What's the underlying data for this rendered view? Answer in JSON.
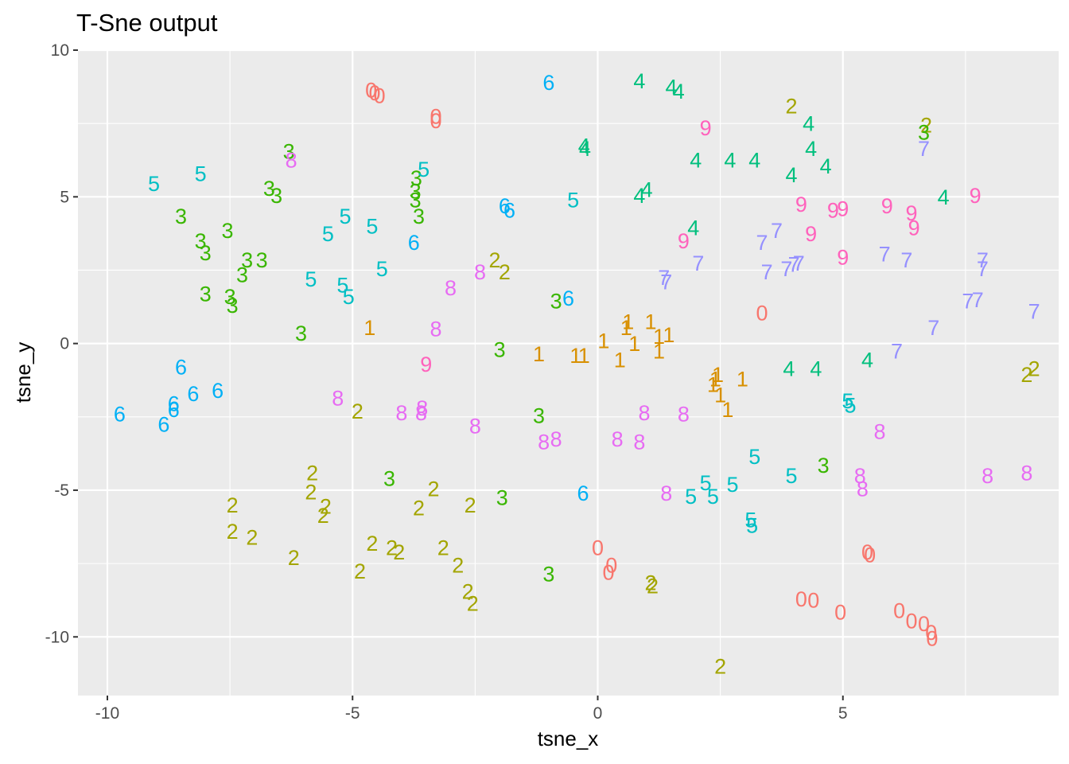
{
  "chart_data": {
    "type": "scatter",
    "title": "T-Sne output",
    "xlabel": "tsne_x",
    "ylabel": "tsne_y",
    "xlim": [
      -10.6,
      9.4
    ],
    "ylim": [
      -12.0,
      10.0
    ],
    "x_ticks": [
      -10,
      -5,
      0,
      5
    ],
    "y_ticks": [
      10,
      5,
      0,
      -5,
      -10
    ],
    "x_tick_labels": [
      "-10",
      "-5",
      "0",
      "5"
    ],
    "y_tick_labels": [
      "10",
      "5",
      "0",
      "-5",
      "-10"
    ],
    "grid": true,
    "legend": "none",
    "panel_background": "#ebebeb",
    "grid_color": "#ffffff",
    "label_colors": {
      "0": "#f8766d",
      "1": "#d89000",
      "2": "#a3a500",
      "3": "#39b600",
      "4": "#00bf7d",
      "5": "#00bfc4",
      "6": "#00b0f6",
      "7": "#9590ff",
      "8": "#e76bf3",
      "9": "#ff62bc"
    },
    "points": [
      {
        "x": -4.62,
        "y": 8.65,
        "label": "0"
      },
      {
        "x": -4.55,
        "y": 8.55,
        "label": "0"
      },
      {
        "x": -4.45,
        "y": 8.45,
        "label": "0"
      },
      {
        "x": -3.3,
        "y": 7.75,
        "label": "0"
      },
      {
        "x": -3.3,
        "y": 7.6,
        "label": "0"
      },
      {
        "x": 3.35,
        "y": 1.05,
        "label": "0"
      },
      {
        "x": 0.0,
        "y": -6.95,
        "label": "0"
      },
      {
        "x": 0.28,
        "y": -7.55,
        "label": "0"
      },
      {
        "x": 0.22,
        "y": -7.8,
        "label": "0"
      },
      {
        "x": 4.15,
        "y": -8.7,
        "label": "0"
      },
      {
        "x": 4.4,
        "y": -8.75,
        "label": "0"
      },
      {
        "x": 4.95,
        "y": -9.15,
        "label": "0"
      },
      {
        "x": 5.5,
        "y": -7.1,
        "label": "0"
      },
      {
        "x": 5.55,
        "y": -7.2,
        "label": "0"
      },
      {
        "x": 6.15,
        "y": -9.1,
        "label": "0"
      },
      {
        "x": 6.4,
        "y": -9.45,
        "label": "0"
      },
      {
        "x": 6.65,
        "y": -9.55,
        "label": "0"
      },
      {
        "x": 6.8,
        "y": -9.85,
        "label": "0"
      },
      {
        "x": 6.82,
        "y": -10.05,
        "label": "0"
      },
      {
        "x": -4.65,
        "y": 0.55,
        "label": "1"
      },
      {
        "x": -1.2,
        "y": -0.35,
        "label": "1"
      },
      {
        "x": -0.45,
        "y": -0.4,
        "label": "1"
      },
      {
        "x": -0.28,
        "y": -0.4,
        "label": "1"
      },
      {
        "x": 0.12,
        "y": 0.1,
        "label": "1"
      },
      {
        "x": 0.45,
        "y": -0.55,
        "label": "1"
      },
      {
        "x": 0.58,
        "y": 0.55,
        "label": "1"
      },
      {
        "x": 0.62,
        "y": 0.75,
        "label": "1"
      },
      {
        "x": 0.75,
        "y": 0.0,
        "label": "1"
      },
      {
        "x": 1.08,
        "y": 0.75,
        "label": "1"
      },
      {
        "x": 1.25,
        "y": 0.25,
        "label": "1"
      },
      {
        "x": 1.45,
        "y": 0.3,
        "label": "1"
      },
      {
        "x": 1.25,
        "y": -0.25,
        "label": "1"
      },
      {
        "x": 2.4,
        "y": -1.2,
        "label": "1"
      },
      {
        "x": 2.45,
        "y": -1.05,
        "label": "1"
      },
      {
        "x": 2.35,
        "y": -1.4,
        "label": "1"
      },
      {
        "x": 2.5,
        "y": -1.75,
        "label": "1"
      },
      {
        "x": 2.65,
        "y": -2.25,
        "label": "1"
      },
      {
        "x": 2.95,
        "y": -1.2,
        "label": "1"
      },
      {
        "x": 3.95,
        "y": 8.1,
        "label": "2"
      },
      {
        "x": 6.7,
        "y": 7.45,
        "label": "2"
      },
      {
        "x": -2.1,
        "y": 2.85,
        "label": "2"
      },
      {
        "x": -1.9,
        "y": 2.45,
        "label": "2"
      },
      {
        "x": 8.75,
        "y": -1.05,
        "label": "2"
      },
      {
        "x": 8.9,
        "y": -0.85,
        "label": "2"
      },
      {
        "x": -4.9,
        "y": -2.3,
        "label": "2"
      },
      {
        "x": -5.82,
        "y": -4.4,
        "label": "2"
      },
      {
        "x": -5.85,
        "y": -5.05,
        "label": "2"
      },
      {
        "x": -5.55,
        "y": -5.55,
        "label": "2"
      },
      {
        "x": -5.6,
        "y": -5.85,
        "label": "2"
      },
      {
        "x": -7.45,
        "y": -5.5,
        "label": "2"
      },
      {
        "x": -7.45,
        "y": -6.4,
        "label": "2"
      },
      {
        "x": -7.05,
        "y": -6.6,
        "label": "2"
      },
      {
        "x": -6.2,
        "y": -7.3,
        "label": "2"
      },
      {
        "x": -4.85,
        "y": -7.75,
        "label": "2"
      },
      {
        "x": -4.6,
        "y": -6.8,
        "label": "2"
      },
      {
        "x": -4.2,
        "y": -6.95,
        "label": "2"
      },
      {
        "x": -4.05,
        "y": -7.1,
        "label": "2"
      },
      {
        "x": -3.65,
        "y": -5.6,
        "label": "2"
      },
      {
        "x": -3.35,
        "y": -4.95,
        "label": "2"
      },
      {
        "x": -3.15,
        "y": -6.95,
        "label": "2"
      },
      {
        "x": -2.85,
        "y": -7.55,
        "label": "2"
      },
      {
        "x": -2.6,
        "y": -5.5,
        "label": "2"
      },
      {
        "x": -2.65,
        "y": -8.45,
        "label": "2"
      },
      {
        "x": -2.55,
        "y": -8.85,
        "label": "2"
      },
      {
        "x": 1.08,
        "y": -8.15,
        "label": "2"
      },
      {
        "x": 1.12,
        "y": -8.25,
        "label": "2"
      },
      {
        "x": 2.5,
        "y": -11.0,
        "label": "2"
      },
      {
        "x": -6.3,
        "y": 6.55,
        "label": "3"
      },
      {
        "x": -6.7,
        "y": 5.3,
        "label": "3"
      },
      {
        "x": -6.55,
        "y": 5.05,
        "label": "3"
      },
      {
        "x": -3.7,
        "y": 5.65,
        "label": "3"
      },
      {
        "x": -3.72,
        "y": 5.2,
        "label": "3"
      },
      {
        "x": -3.72,
        "y": 4.9,
        "label": "3"
      },
      {
        "x": -3.65,
        "y": 4.35,
        "label": "3"
      },
      {
        "x": 6.65,
        "y": 7.2,
        "label": "3"
      },
      {
        "x": -8.5,
        "y": 4.35,
        "label": "3"
      },
      {
        "x": -7.55,
        "y": 3.85,
        "label": "3"
      },
      {
        "x": -8.1,
        "y": 3.5,
        "label": "3"
      },
      {
        "x": -8.0,
        "y": 3.1,
        "label": "3"
      },
      {
        "x": -7.15,
        "y": 2.85,
        "label": "3"
      },
      {
        "x": -6.85,
        "y": 2.85,
        "label": "3"
      },
      {
        "x": -7.25,
        "y": 2.35,
        "label": "3"
      },
      {
        "x": -8.0,
        "y": 1.7,
        "label": "3"
      },
      {
        "x": -7.5,
        "y": 1.6,
        "label": "3"
      },
      {
        "x": -7.45,
        "y": 1.3,
        "label": "3"
      },
      {
        "x": -6.05,
        "y": 0.35,
        "label": "3"
      },
      {
        "x": -0.85,
        "y": 1.45,
        "label": "3"
      },
      {
        "x": -2.0,
        "y": -0.2,
        "label": "3"
      },
      {
        "x": -1.2,
        "y": -2.45,
        "label": "3"
      },
      {
        "x": 4.6,
        "y": -4.15,
        "label": "3"
      },
      {
        "x": -4.25,
        "y": -4.6,
        "label": "3"
      },
      {
        "x": -1.95,
        "y": -5.25,
        "label": "3"
      },
      {
        "x": -1.0,
        "y": -7.85,
        "label": "3"
      },
      {
        "x": 0.85,
        "y": 8.95,
        "label": "4"
      },
      {
        "x": 1.5,
        "y": 8.75,
        "label": "4"
      },
      {
        "x": 1.65,
        "y": 8.6,
        "label": "4"
      },
      {
        "x": -0.28,
        "y": 6.75,
        "label": "4"
      },
      {
        "x": -0.26,
        "y": 6.65,
        "label": "4"
      },
      {
        "x": 4.3,
        "y": 7.5,
        "label": "4"
      },
      {
        "x": 4.35,
        "y": 6.65,
        "label": "4"
      },
      {
        "x": 2.0,
        "y": 6.25,
        "label": "4"
      },
      {
        "x": 2.7,
        "y": 6.25,
        "label": "4"
      },
      {
        "x": 3.2,
        "y": 6.25,
        "label": "4"
      },
      {
        "x": 3.95,
        "y": 5.75,
        "label": "4"
      },
      {
        "x": 4.65,
        "y": 6.05,
        "label": "4"
      },
      {
        "x": 7.05,
        "y": 5.0,
        "label": "4"
      },
      {
        "x": 1.0,
        "y": 5.25,
        "label": "4"
      },
      {
        "x": 0.85,
        "y": 5.05,
        "label": "4"
      },
      {
        "x": 1.95,
        "y": 3.95,
        "label": "4"
      },
      {
        "x": 3.9,
        "y": -0.85,
        "label": "4"
      },
      {
        "x": 4.45,
        "y": -0.85,
        "label": "4"
      },
      {
        "x": 5.5,
        "y": -0.55,
        "label": "4"
      },
      {
        "x": -9.05,
        "y": 5.45,
        "label": "5"
      },
      {
        "x": -8.1,
        "y": 5.8,
        "label": "5"
      },
      {
        "x": -3.55,
        "y": 5.95,
        "label": "5"
      },
      {
        "x": -5.15,
        "y": 4.35,
        "label": "5"
      },
      {
        "x": -5.5,
        "y": 3.75,
        "label": "5"
      },
      {
        "x": -4.6,
        "y": 4.0,
        "label": "5"
      },
      {
        "x": -0.5,
        "y": 4.9,
        "label": "5"
      },
      {
        "x": -5.85,
        "y": 2.2,
        "label": "5"
      },
      {
        "x": -5.2,
        "y": 2.0,
        "label": "5"
      },
      {
        "x": -5.08,
        "y": 1.6,
        "label": "5"
      },
      {
        "x": -4.4,
        "y": 2.55,
        "label": "5"
      },
      {
        "x": 5.1,
        "y": -1.95,
        "label": "5"
      },
      {
        "x": 5.15,
        "y": -2.1,
        "label": "5"
      },
      {
        "x": 3.2,
        "y": -3.85,
        "label": "5"
      },
      {
        "x": 3.95,
        "y": -4.5,
        "label": "5"
      },
      {
        "x": 2.2,
        "y": -4.75,
        "label": "5"
      },
      {
        "x": 2.75,
        "y": -4.8,
        "label": "5"
      },
      {
        "x": 1.9,
        "y": -5.2,
        "label": "5"
      },
      {
        "x": 2.35,
        "y": -5.2,
        "label": "5"
      },
      {
        "x": 3.12,
        "y": -6.0,
        "label": "5"
      },
      {
        "x": 3.15,
        "y": -6.2,
        "label": "5"
      },
      {
        "x": -1.0,
        "y": 8.9,
        "label": "6"
      },
      {
        "x": -1.9,
        "y": 4.7,
        "label": "6"
      },
      {
        "x": -1.8,
        "y": 4.55,
        "label": "6"
      },
      {
        "x": -3.75,
        "y": 3.45,
        "label": "6"
      },
      {
        "x": -0.6,
        "y": 1.55,
        "label": "6"
      },
      {
        "x": -8.5,
        "y": -0.8,
        "label": "6"
      },
      {
        "x": -7.75,
        "y": -1.6,
        "label": "6"
      },
      {
        "x": -8.25,
        "y": -1.7,
        "label": "6"
      },
      {
        "x": -8.65,
        "y": -2.05,
        "label": "6"
      },
      {
        "x": -8.65,
        "y": -2.25,
        "label": "6"
      },
      {
        "x": -9.75,
        "y": -2.4,
        "label": "6"
      },
      {
        "x": -8.85,
        "y": -2.75,
        "label": "6"
      },
      {
        "x": -0.3,
        "y": -5.1,
        "label": "6"
      },
      {
        "x": 6.65,
        "y": 6.65,
        "label": "7"
      },
      {
        "x": 3.65,
        "y": 3.85,
        "label": "7"
      },
      {
        "x": 3.35,
        "y": 3.45,
        "label": "7"
      },
      {
        "x": 2.05,
        "y": 2.75,
        "label": "7"
      },
      {
        "x": 1.35,
        "y": 2.25,
        "label": "7"
      },
      {
        "x": 1.4,
        "y": 2.1,
        "label": "7"
      },
      {
        "x": 3.45,
        "y": 2.45,
        "label": "7"
      },
      {
        "x": 3.85,
        "y": 2.55,
        "label": "7"
      },
      {
        "x": 4.0,
        "y": 2.7,
        "label": "7"
      },
      {
        "x": 4.1,
        "y": 2.75,
        "label": "7"
      },
      {
        "x": 5.85,
        "y": 3.05,
        "label": "7"
      },
      {
        "x": 6.3,
        "y": 2.85,
        "label": "7"
      },
      {
        "x": 7.85,
        "y": 2.85,
        "label": "7"
      },
      {
        "x": 7.85,
        "y": 2.55,
        "label": "7"
      },
      {
        "x": 7.55,
        "y": 1.45,
        "label": "7"
      },
      {
        "x": 7.75,
        "y": 1.5,
        "label": "7"
      },
      {
        "x": 8.9,
        "y": 1.1,
        "label": "7"
      },
      {
        "x": 6.85,
        "y": 0.55,
        "label": "7"
      },
      {
        "x": 6.1,
        "y": -0.25,
        "label": "7"
      },
      {
        "x": -6.25,
        "y": 6.25,
        "label": "8"
      },
      {
        "x": -2.4,
        "y": 2.45,
        "label": "8"
      },
      {
        "x": -3.0,
        "y": 1.9,
        "label": "8"
      },
      {
        "x": -3.3,
        "y": 0.5,
        "label": "8"
      },
      {
        "x": -5.3,
        "y": -1.85,
        "label": "8"
      },
      {
        "x": -4.0,
        "y": -2.35,
        "label": "8"
      },
      {
        "x": -3.58,
        "y": -2.2,
        "label": "8"
      },
      {
        "x": -3.6,
        "y": -2.35,
        "label": "8"
      },
      {
        "x": -2.5,
        "y": -2.8,
        "label": "8"
      },
      {
        "x": -1.1,
        "y": -3.35,
        "label": "8"
      },
      {
        "x": -0.85,
        "y": -3.25,
        "label": "8"
      },
      {
        "x": 0.4,
        "y": -3.25,
        "label": "8"
      },
      {
        "x": 0.85,
        "y": -3.35,
        "label": "8"
      },
      {
        "x": 0.95,
        "y": -2.35,
        "label": "8"
      },
      {
        "x": 1.75,
        "y": -2.4,
        "label": "8"
      },
      {
        "x": 1.4,
        "y": -5.1,
        "label": "8"
      },
      {
        "x": 5.75,
        "y": -3.0,
        "label": "8"
      },
      {
        "x": 5.35,
        "y": -4.5,
        "label": "8"
      },
      {
        "x": 5.4,
        "y": -4.95,
        "label": "8"
      },
      {
        "x": 7.95,
        "y": -4.5,
        "label": "8"
      },
      {
        "x": 8.75,
        "y": -4.4,
        "label": "8"
      },
      {
        "x": 2.2,
        "y": 7.35,
        "label": "9"
      },
      {
        "x": 4.15,
        "y": 4.75,
        "label": "9"
      },
      {
        "x": 4.8,
        "y": 4.55,
        "label": "9"
      },
      {
        "x": 5.0,
        "y": 4.6,
        "label": "9"
      },
      {
        "x": 5.9,
        "y": 4.7,
        "label": "9"
      },
      {
        "x": 6.4,
        "y": 4.45,
        "label": "9"
      },
      {
        "x": 6.45,
        "y": 3.95,
        "label": "9"
      },
      {
        "x": 7.7,
        "y": 5.05,
        "label": "9"
      },
      {
        "x": 4.35,
        "y": 3.75,
        "label": "9"
      },
      {
        "x": 1.75,
        "y": 3.5,
        "label": "9"
      },
      {
        "x": 5.0,
        "y": 2.95,
        "label": "9"
      },
      {
        "x": -3.5,
        "y": -0.7,
        "label": "9"
      }
    ]
  }
}
